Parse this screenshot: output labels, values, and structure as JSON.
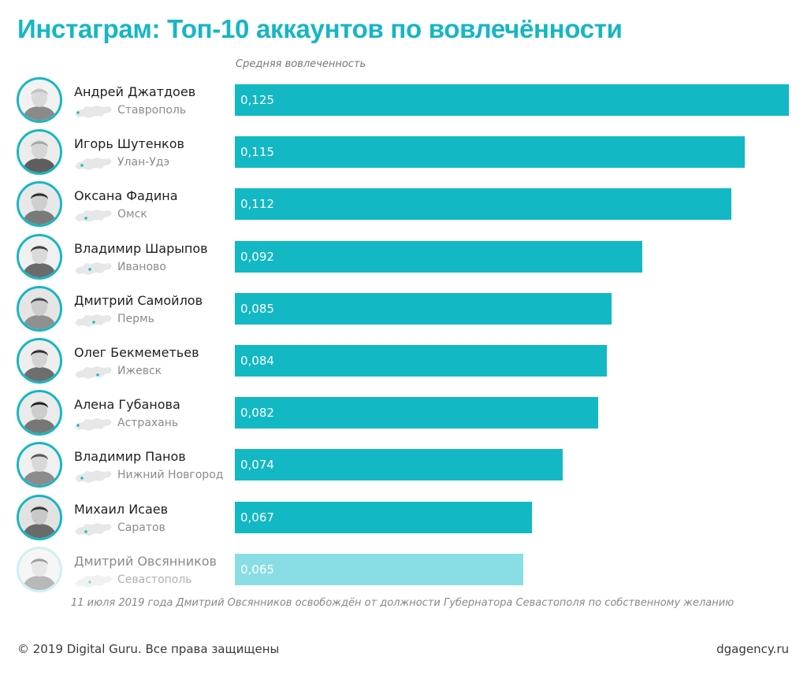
{
  "title": "Инстаграм: Топ-10 аккаунтов по вовлечённости",
  "chart_data": {
    "type": "bar",
    "orientation": "horizontal",
    "xlabel": "Средняя вовлеченность",
    "xlim": [
      0,
      0.125
    ],
    "categories": [
      "Андрей Джатдоев",
      "Игорь Шутенков",
      "Оксана Фадина",
      "Владимир Шарыпов",
      "Дмитрий Самойлов",
      "Олег Бекмеметьев",
      "Алена Губанова",
      "Владимир Панов",
      "Михаил Исаев",
      "Дмитрий Овсянников"
    ],
    "values": [
      0.125,
      0.115,
      0.112,
      0.092,
      0.085,
      0.084,
      0.082,
      0.074,
      0.067,
      0.065
    ],
    "value_labels": [
      "0,125",
      "0,115",
      "0,112",
      "0,092",
      "0,085",
      "0,084",
      "0,082",
      "0,074",
      "0,067",
      "0,065"
    ],
    "cities": [
      "Ставрополь",
      "Улан-Удэ",
      "Омск",
      "Иваново",
      "Пермь",
      "Ижевск",
      "Астрахань",
      "Нижний Новгород",
      "Саратов",
      "Севастополь"
    ],
    "highlighted": [
      true,
      true,
      true,
      true,
      true,
      true,
      true,
      true,
      true,
      false
    ],
    "colors": {
      "bar": "#12b8c4",
      "bar_faded": "#89dde4",
      "title": "#16b6c4"
    },
    "grid": false
  },
  "footnote": "11 июля 2019 года Дмитрий Овсянников освобождён от должности Губернатора Севастополя по собственному желанию",
  "footer": {
    "copyright": "© 2019 Digital Guru. Все права защищены",
    "site": "dgagency.ru"
  },
  "icons": {
    "avatar": "person-photo-icon",
    "map": "russia-map-icon"
  }
}
